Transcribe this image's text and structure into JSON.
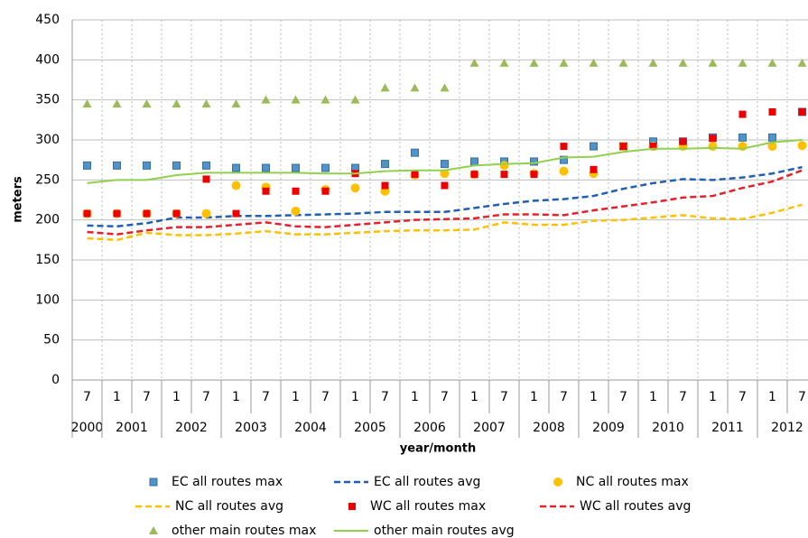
{
  "chart_data": {
    "type": "line",
    "y_label": "meters",
    "x_label": "year/month",
    "categories": [
      "7",
      "1",
      "7",
      "1",
      "7",
      "1",
      "7",
      "1",
      "7",
      "1",
      "7",
      "1",
      "7",
      "1",
      "7",
      "1",
      "7",
      "1",
      "7",
      "1",
      "7",
      "1",
      "7",
      "1",
      "7"
    ],
    "years": [
      "2000",
      "2001",
      "2002",
      "2003",
      "2004",
      "2005",
      "2006",
      "2007",
      "2008",
      "2009",
      "2010",
      "2011",
      "2012"
    ],
    "ylim": [
      0,
      450
    ],
    "yticks": [
      0,
      50,
      100,
      150,
      200,
      250,
      300,
      350,
      400,
      450
    ],
    "grid": true,
    "series": [
      {
        "name": "EC all routes max",
        "color": "#4f93c9",
        "marker": "square",
        "values": [
          268,
          268,
          268,
          268,
          268,
          265,
          265,
          265,
          265,
          265,
          270,
          284,
          270,
          273,
          273,
          273,
          275,
          292,
          292,
          298,
          298,
          303,
          303,
          303,
          335
        ]
      },
      {
        "name": "EC all routes avg",
        "color": "#1f5fb4",
        "line": "dashed",
        "values": [
          193,
          192,
          196,
          203,
          203,
          205,
          205,
          206,
          207,
          208,
          210,
          210,
          210,
          215,
          220,
          224,
          226,
          230,
          239,
          246,
          251,
          250,
          253,
          258,
          266
        ]
      },
      {
        "name": "NC all routes max",
        "color": "#ffc000",
        "marker": "circle",
        "values": [
          208,
          208,
          208,
          208,
          208,
          243,
          241,
          211,
          238,
          240,
          236,
          256,
          258,
          257,
          268,
          258,
          261,
          258,
          292,
          292,
          292,
          292,
          292,
          292,
          293
        ]
      },
      {
        "name": "NC all routes avg",
        "color": "#ffc000",
        "line": "dashed",
        "values": [
          177,
          175,
          184,
          181,
          181,
          183,
          186,
          182,
          182,
          184,
          186,
          187,
          187,
          188,
          197,
          194,
          194,
          199,
          200,
          203,
          206,
          202,
          201,
          209,
          219
        ]
      },
      {
        "name": "WC all routes max",
        "color": "#ee0000",
        "marker": "square",
        "values": [
          208,
          208,
          208,
          208,
          251,
          208,
          236,
          236,
          236,
          258,
          243,
          257,
          243,
          257,
          257,
          257,
          292,
          263,
          292,
          292,
          298,
          302,
          332,
          335,
          335
        ]
      },
      {
        "name": "WC all routes avg",
        "color": "#e8202a",
        "line": "dashed",
        "values": [
          185,
          182,
          187,
          191,
          191,
          194,
          197,
          192,
          191,
          194,
          197,
          200,
          201,
          202,
          207,
          207,
          206,
          212,
          217,
          222,
          228,
          230,
          240,
          248,
          262
        ]
      },
      {
        "name": "other main routes max",
        "color": "#9bbb59",
        "marker": "triangle",
        "values": [
          345,
          345,
          345,
          345,
          345,
          345,
          350,
          350,
          350,
          350,
          365,
          365,
          365,
          396,
          396,
          396,
          396,
          396,
          396,
          396,
          396,
          396,
          396,
          396,
          396
        ]
      },
      {
        "name": "other main routes avg",
        "color": "#92d050",
        "line": "solid",
        "values": [
          246,
          250,
          250,
          256,
          259,
          259,
          259,
          259,
          258,
          258,
          261,
          262,
          262,
          268,
          270,
          271,
          278,
          279,
          285,
          289,
          289,
          290,
          289,
          297,
          300
        ]
      }
    ]
  }
}
